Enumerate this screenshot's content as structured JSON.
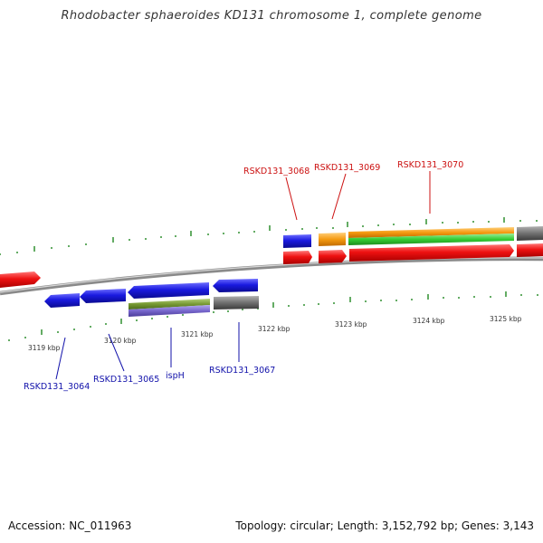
{
  "title": "Rhodobacter sphaeroides KD131 chromosome 1, complete genome",
  "footer": {
    "accession": "Accession: NC_011963",
    "info": "Topology: circular; Length: 3,152,792 bp; Genes: 3,143"
  },
  "scale_labels": [
    "3119 kbp",
    "3120 kbp",
    "3121 kbp",
    "3122 kbp",
    "3123 kbp",
    "3124 kbp",
    "3125 kbp"
  ],
  "gene_labels_top": [
    "RSKD131_3068",
    "RSKD131_3069",
    "RSKD131_3070"
  ],
  "gene_labels_bottom": [
    "RSKD131_3064",
    "RSKD131_3065",
    "ispH",
    "RSKD131_3067"
  ],
  "colors": {
    "forward_label": "#cc1111",
    "reverse_label": "#1111aa",
    "red": "#ee1111",
    "blue": "#1a1ae0",
    "orange": "#f59a10",
    "green": "#33cc33",
    "grey": "#707070",
    "olive": "#779933",
    "violet": "#7766cc",
    "tick": "#228822",
    "backbone": "#8a8a8a"
  }
}
